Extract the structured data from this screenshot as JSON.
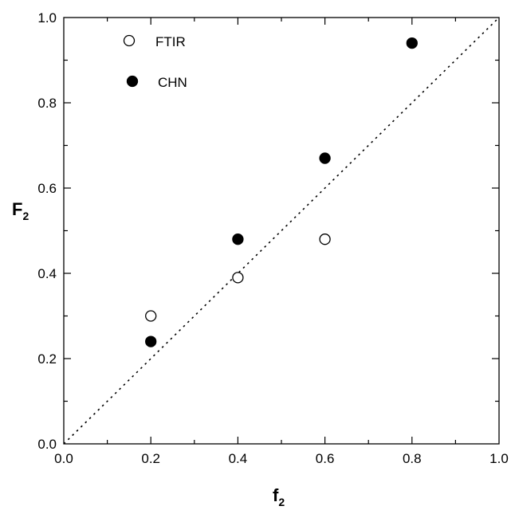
{
  "chart_data": {
    "type": "scatter",
    "title": "",
    "xlabel": {
      "main": "f",
      "sub": "2"
    },
    "ylabel": {
      "main": "F",
      "sub": "2"
    },
    "xlim": [
      0,
      1
    ],
    "ylim": [
      0,
      1
    ],
    "x_ticks": [
      "0.0",
      "0.2",
      "0.4",
      "0.6",
      "0.8",
      "1.0"
    ],
    "y_ticks": [
      "0.0",
      "0.2",
      "0.4",
      "0.6",
      "0.8",
      "1.0"
    ],
    "grid": false,
    "legend_position": "top-left",
    "reference_line": {
      "style": "dotted",
      "from": [
        0,
        0
      ],
      "to": [
        1,
        1
      ]
    },
    "series": [
      {
        "name": "FTIR",
        "marker": "open-circle",
        "color": "#000000",
        "points": [
          {
            "x": 0.2,
            "y": 0.3
          },
          {
            "x": 0.4,
            "y": 0.39
          },
          {
            "x": 0.6,
            "y": 0.48
          }
        ]
      },
      {
        "name": "CHN",
        "marker": "filled-circle",
        "color": "#000000",
        "points": [
          {
            "x": 0.2,
            "y": 0.24
          },
          {
            "x": 0.4,
            "y": 0.48
          },
          {
            "x": 0.6,
            "y": 0.67
          },
          {
            "x": 0.8,
            "y": 0.94
          }
        ]
      }
    ]
  }
}
